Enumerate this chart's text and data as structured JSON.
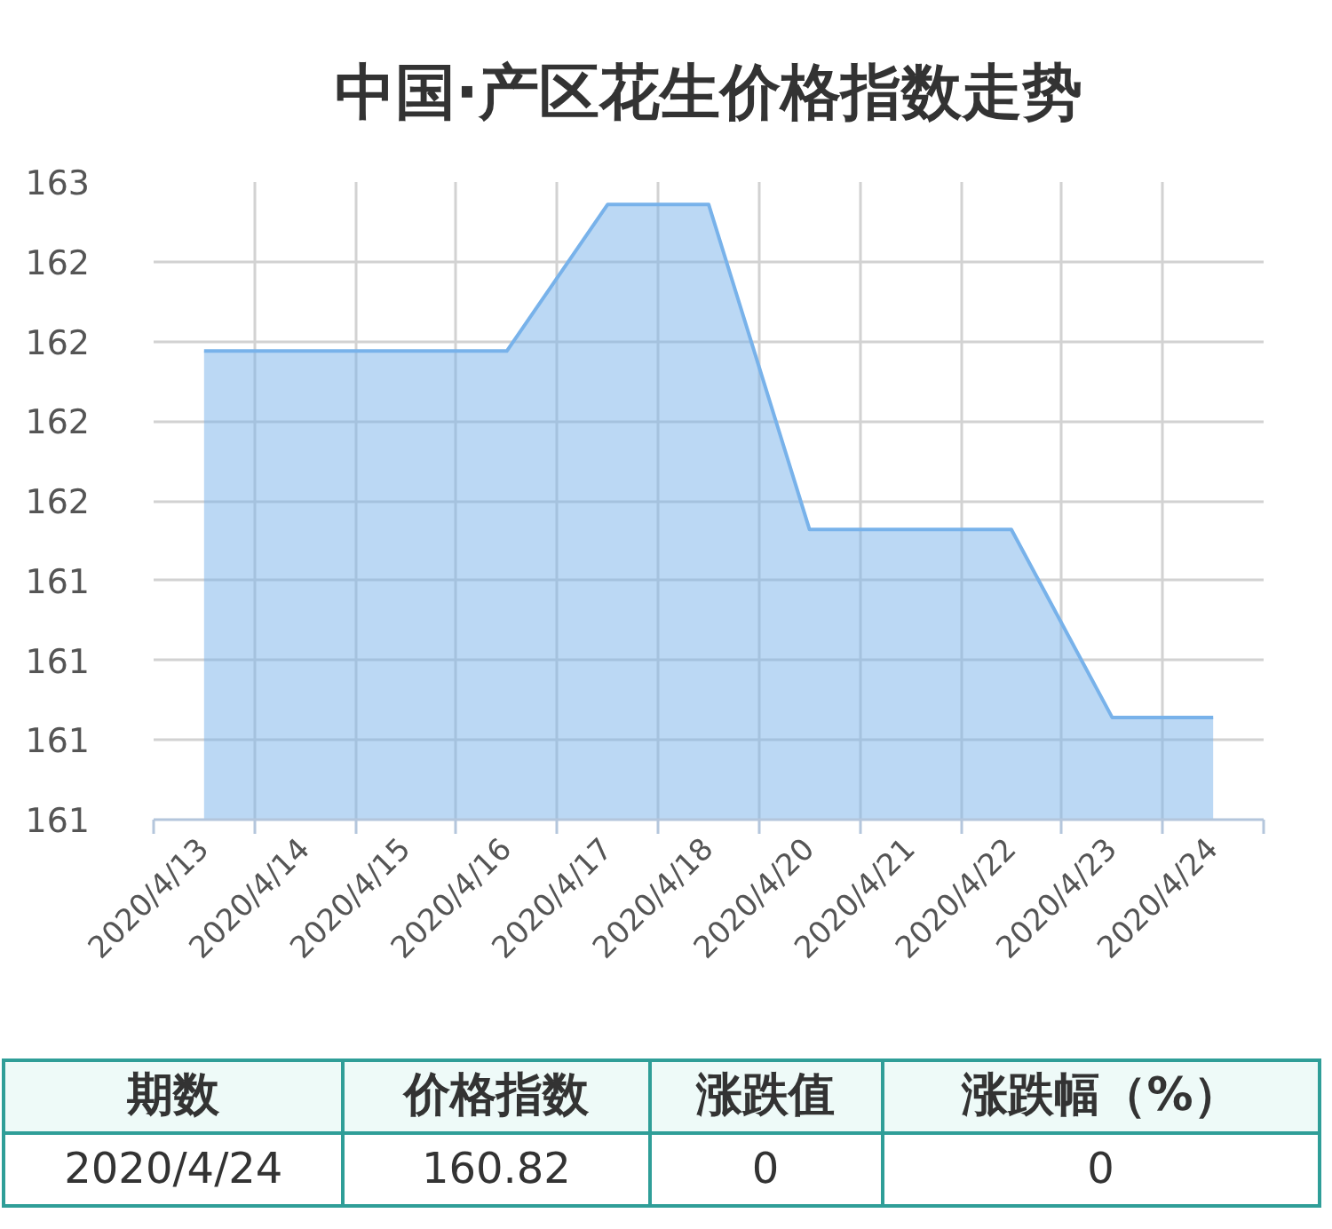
{
  "chart_data": {
    "type": "area",
    "title": "中国·产区花生价格指数走势",
    "categories": [
      "2020/4/13",
      "2020/4/14",
      "2020/4/15",
      "2020/4/16",
      "2020/4/17",
      "2020/4/18",
      "2020/4/20",
      "2020/4/21",
      "2020/4/22",
      "2020/4/23",
      "2020/4/24"
    ],
    "values": [
      161.97,
      161.97,
      161.97,
      161.97,
      162.43,
      162.43,
      161.41,
      161.41,
      161.41,
      160.82,
      160.82
    ],
    "color": "#78b2ea",
    "ylim": [
      160.5,
      162.5
    ],
    "yticks": [
      {
        "value": 160.5,
        "label": "161"
      },
      {
        "value": 160.75,
        "label": "161"
      },
      {
        "value": 161,
        "label": "161"
      },
      {
        "value": 161.25,
        "label": "161"
      },
      {
        "value": 161.5,
        "label": "162"
      },
      {
        "value": 161.75,
        "label": "162"
      },
      {
        "value": 162,
        "label": "162"
      },
      {
        "value": 162.25,
        "label": "162"
      },
      {
        "value": 162.5,
        "label": "163"
      }
    ],
    "grid": true,
    "annotations": [
      "期数",
      "价格指数",
      "涨跌值",
      "涨跌幅（%）",
      "2020/4/24",
      "160.82",
      "0",
      "0"
    ]
  }
}
